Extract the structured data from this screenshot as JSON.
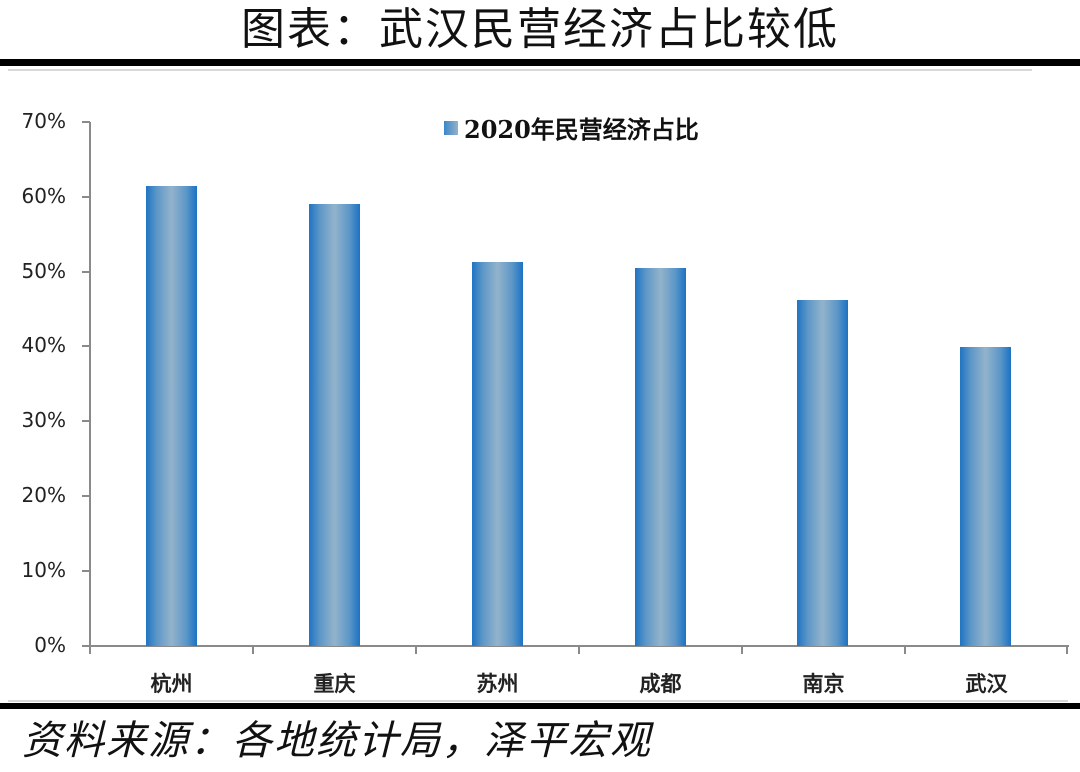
{
  "header": {
    "title": "图表：武汉民营经济占比较低"
  },
  "footer": {
    "source": "资料来源：各地统计局，泽平宏观"
  },
  "colors": {
    "bar_edge": "#1f74c2",
    "bar_center": "#93b3cb",
    "axis": "#8a8a8a",
    "rule": "#000000"
  },
  "chart_data": {
    "type": "bar",
    "title": "图表：武汉民营经济占比较低",
    "categories": [
      "杭州",
      "重庆",
      "苏州",
      "成都",
      "南京",
      "武汉"
    ],
    "series": [
      {
        "name": "2020年民营经济占比",
        "values": [
          61.3,
          59.0,
          51.2,
          50.4,
          46.1,
          39.9
        ]
      }
    ],
    "values": [
      61.3,
      59.0,
      51.2,
      50.4,
      46.1,
      39.9
    ],
    "xlabel": "",
    "ylabel": "",
    "ylim": [
      0,
      70
    ],
    "yticks": [
      "0%",
      "10%",
      "20%",
      "30%",
      "40%",
      "50%",
      "60%",
      "70%"
    ],
    "legend": {
      "position": "top-center",
      "entries": [
        "2020年民营经济占比"
      ]
    },
    "grid": false,
    "unit": "%"
  }
}
